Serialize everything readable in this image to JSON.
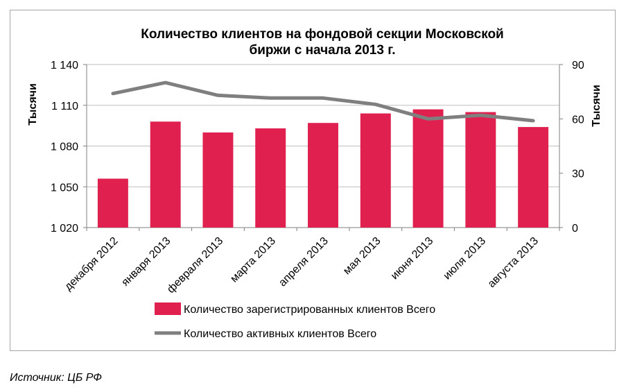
{
  "chart_data": {
    "type": "bar",
    "title_lines": [
      "Количество клиентов на фондовой секции Московской",
      "биржи с начала 2013 г."
    ],
    "categories": [
      "декабря 2012",
      "января 2013",
      "февраля 2013",
      "марта 2013",
      "апреля 2013",
      "мая 2013",
      "июня 2013",
      "июля 2013",
      "августа 2013"
    ],
    "series": [
      {
        "name": "Количество зарегистрированных клиентов Всего",
        "type": "bar",
        "axis": "left",
        "color": "#e0204f",
        "values": [
          1056,
          1098,
          1090,
          1093,
          1097,
          1104,
          1107,
          1105,
          1094
        ]
      },
      {
        "name": "Количество активных клиентов Всего",
        "type": "line",
        "axis": "right",
        "color": "#7f7f7f",
        "values": [
          74,
          80,
          73,
          71.5,
          71.5,
          68,
          60,
          62,
          59
        ]
      }
    ],
    "y_left": {
      "label": "Тысячи",
      "ylim": [
        1020,
        1140
      ],
      "ticks": [
        1020,
        1050,
        1080,
        1110,
        1140
      ],
      "tick_labels": [
        "1 020",
        "1 050",
        "1 080",
        "1 110",
        "1 140"
      ]
    },
    "y_right": {
      "label": "Тысячи",
      "ylim": [
        0,
        90
      ],
      "ticks": [
        0,
        30,
        60,
        90
      ],
      "tick_labels": [
        "0",
        "30",
        "60",
        "90"
      ]
    },
    "grid": "horizontal",
    "legend_position": "bottom"
  },
  "source_note": "Источник: ЦБ РФ"
}
